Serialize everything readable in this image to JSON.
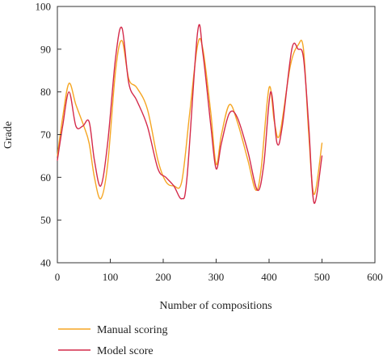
{
  "chart_data": {
    "type": "line",
    "title": "",
    "xlabel": "Number of compositions",
    "ylabel": "Grade",
    "xlim": [
      0,
      600
    ],
    "ylim": [
      40,
      100
    ],
    "xticks": [
      0,
      100,
      200,
      300,
      400,
      500,
      600
    ],
    "yticks": [
      40,
      50,
      60,
      70,
      80,
      90,
      100
    ],
    "grid": false,
    "legend": "bottom-left",
    "series": [
      {
        "name": "Manual scoring",
        "color": "#f5a623",
        "x": [
          0,
          10,
          22,
          35,
          50,
          60,
          70,
          82,
          95,
          110,
          122,
          135,
          150,
          170,
          190,
          205,
          220,
          235,
          250,
          265,
          275,
          290,
          300,
          310,
          325,
          340,
          360,
          375,
          385,
          400,
          410,
          420,
          440,
          455,
          465,
          475,
          485,
          500
        ],
        "y": [
          65,
          74,
          82,
          77,
          72,
          68,
          60,
          55,
          63,
          85,
          92,
          83,
          81,
          76,
          64,
          59,
          58,
          59,
          75,
          91,
          90,
          75,
          63,
          70,
          77,
          73,
          64,
          57,
          62,
          81,
          73,
          70,
          86,
          91,
          90,
          70,
          56,
          68
        ]
      },
      {
        "name": "Model score",
        "color": "#d42a4a",
        "x": [
          0,
          10,
          22,
          35,
          48,
          60,
          70,
          82,
          95,
          110,
          122,
          135,
          150,
          170,
          190,
          205,
          220,
          235,
          245,
          265,
          275,
          290,
          300,
          310,
          325,
          340,
          360,
          378,
          390,
          403,
          415,
          425,
          443,
          455,
          465,
          475,
          485,
          500
        ],
        "y": [
          64,
          72,
          80,
          72,
          72,
          73,
          64,
          58,
          68,
          88,
          95,
          82,
          78,
          72,
          62,
          60,
          58,
          55,
          60,
          94,
          89,
          72,
          62,
          68,
          75,
          74,
          66,
          57,
          63,
          80,
          68,
          72,
          90,
          90,
          88,
          72,
          54,
          65
        ]
      }
    ]
  }
}
